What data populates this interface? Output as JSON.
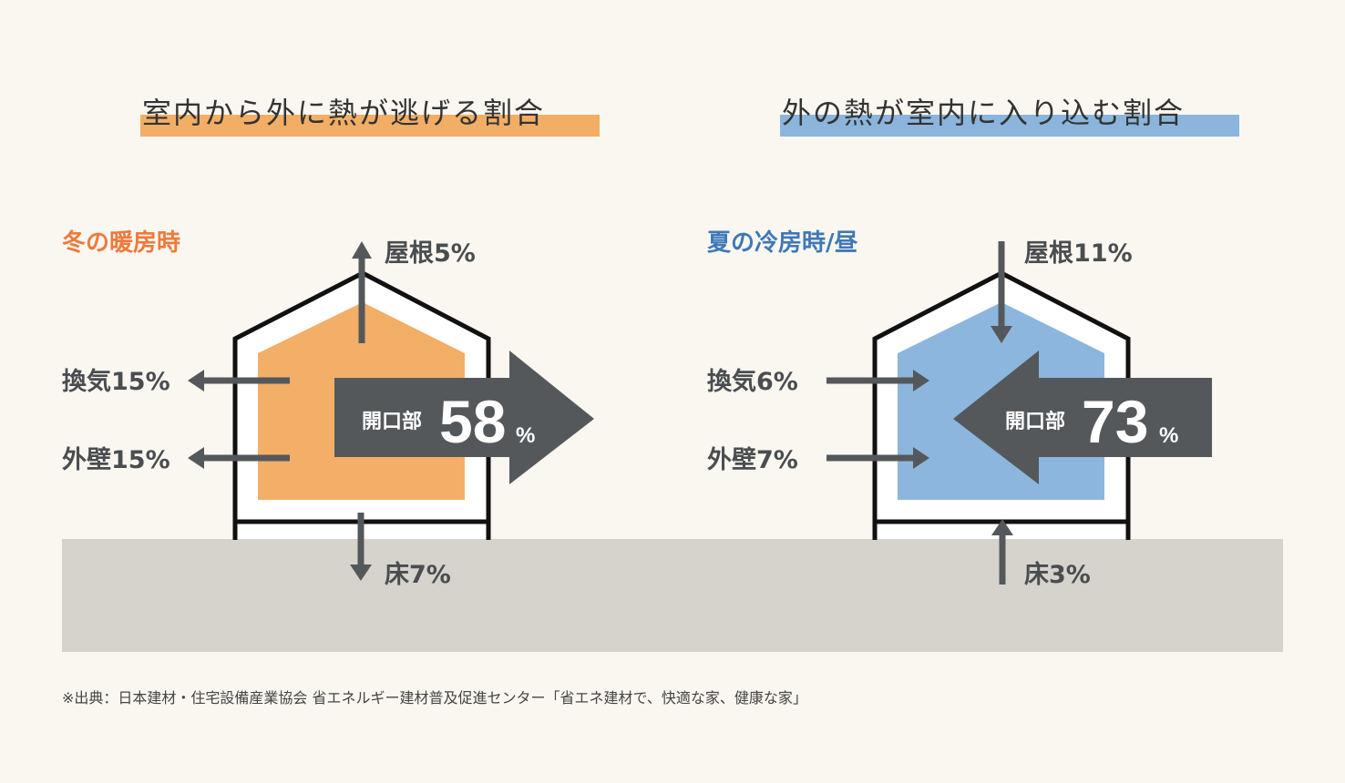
{
  "left": {
    "title": "室内から外に熱が逃げる割合",
    "title_color": "#f3ae65",
    "subtitle": "冬の暖房時",
    "subtitle_color": "#ee7a3c",
    "fill_color": "#f3ae68",
    "roof": "屋根5%",
    "ventilation": "換気15%",
    "wall": "外壁15%",
    "floor": "床7%",
    "opening_label": "開口部",
    "opening_value": "58",
    "opening_unit": "%",
    "direction": "outward"
  },
  "right": {
    "title": "外の熱が室内に入り込む割合",
    "title_color": "#8bb5dc",
    "subtitle": "夏の冷房時/昼",
    "subtitle_color": "#3f78b8",
    "fill_color": "#8cb6dd",
    "roof": "屋根11%",
    "ventilation": "換気6%",
    "wall": "外壁7%",
    "floor": "床3%",
    "opening_label": "開口部",
    "opening_value": "73",
    "opening_unit": "%",
    "direction": "inward"
  },
  "arrow_color": "#55585b",
  "ground_color": "#d6d3cc",
  "source_note": "※出典：日本建材・住宅設備産業協会 省エネルギー建材普及促進センター「省エネ建材で、快適な家、健康な家」"
}
